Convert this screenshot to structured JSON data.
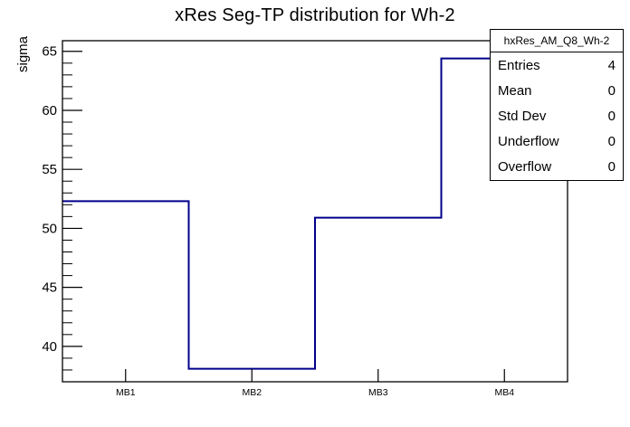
{
  "title": "xRes Seg-TP distribution for Wh-2",
  "stats_box": {
    "title": "hxRes_AM_Q8_Wh-2",
    "rows": [
      {
        "label": "Entries",
        "value": "4"
      },
      {
        "label": "Mean",
        "value": "0"
      },
      {
        "label": "Std Dev",
        "value": "0"
      },
      {
        "label": "Underflow",
        "value": "0"
      },
      {
        "label": "Overflow",
        "value": "0"
      }
    ]
  },
  "chart_data": {
    "type": "line",
    "style": "step-histogram",
    "title": "xRes Seg-TP distribution for Wh-2",
    "categories": [
      "MB1",
      "MB2",
      "MB3",
      "MB4"
    ],
    "values": [
      52.3,
      38.1,
      50.9,
      64.4
    ],
    "xlabel": "",
    "ylabel": "sigma",
    "ylim": [
      37.0,
      65.9
    ],
    "yticks": [
      40,
      45,
      50,
      55,
      60,
      65
    ],
    "minor_tick_step": 1,
    "grid": false,
    "legend_position": "none",
    "line_color": "#00008b",
    "axis_color": "#000000",
    "background_color": "#ffffff"
  }
}
